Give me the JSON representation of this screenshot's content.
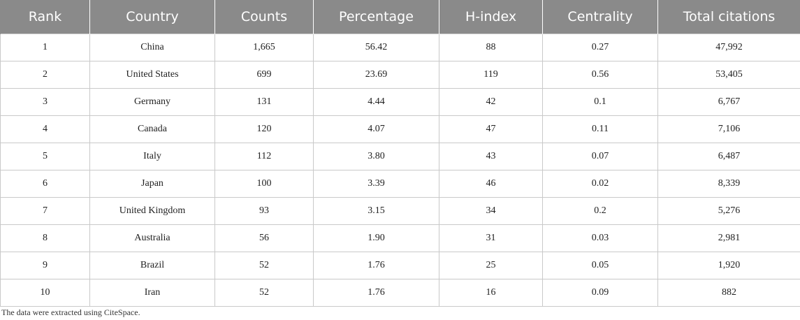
{
  "colors": {
    "header_background": "#8a8a8a",
    "header_text": "#ffffff",
    "grid_line": "#c9c9c9",
    "body_text": "#222222"
  },
  "table": {
    "headers": [
      "Rank",
      "Country",
      "Counts",
      "Percentage",
      "H-index",
      "Centrality",
      "Total citations"
    ],
    "rows": [
      [
        "1",
        "China",
        "1,665",
        "56.42",
        "88",
        "0.27",
        "47,992"
      ],
      [
        "2",
        "United States",
        "699",
        "23.69",
        "119",
        "0.56",
        "53,405"
      ],
      [
        "3",
        "Germany",
        "131",
        "4.44",
        "42",
        "0.1",
        "6,767"
      ],
      [
        "4",
        "Canada",
        "120",
        "4.07",
        "47",
        "0.11",
        "7,106"
      ],
      [
        "5",
        "Italy",
        "112",
        "3.80",
        "43",
        "0.07",
        "6,487"
      ],
      [
        "6",
        "Japan",
        "100",
        "3.39",
        "46",
        "0.02",
        "8,339"
      ],
      [
        "7",
        "United Kingdom",
        "93",
        "3.15",
        "34",
        "0.2",
        "5,276"
      ],
      [
        "8",
        "Australia",
        "56",
        "1.90",
        "31",
        "0.03",
        "2,981"
      ],
      [
        "9",
        "Brazil",
        "52",
        "1.76",
        "25",
        "0.05",
        "1,920"
      ],
      [
        "10",
        "Iran",
        "52",
        "1.76",
        "16",
        "0.09",
        "882"
      ]
    ]
  },
  "footnote": "The data were extracted using CiteSpace."
}
